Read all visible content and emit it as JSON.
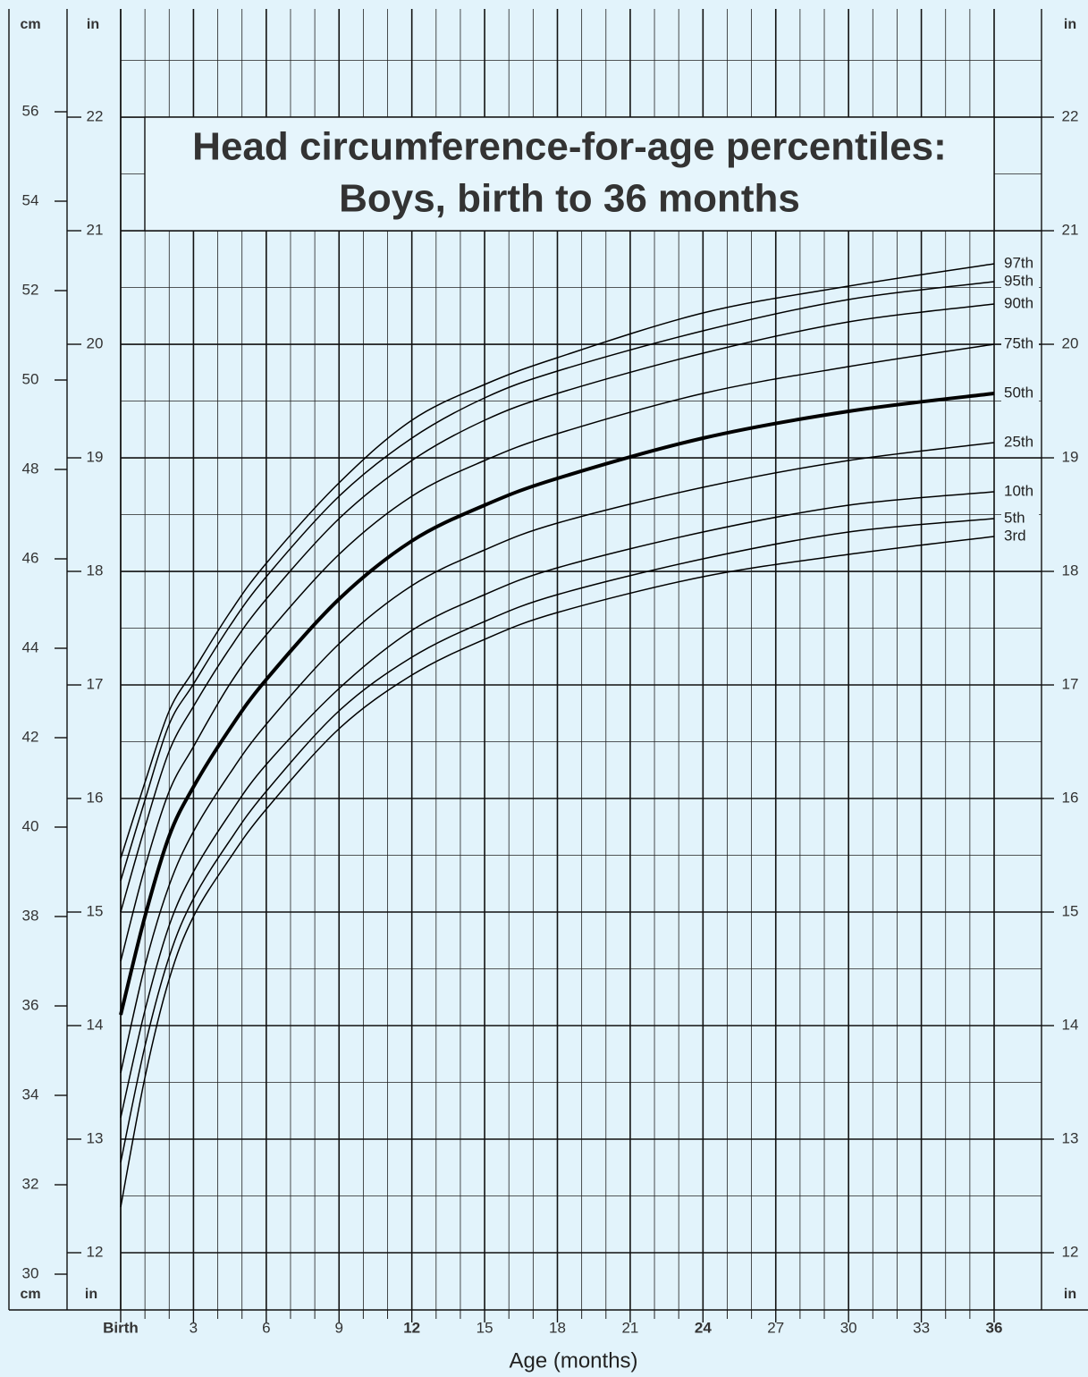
{
  "chart_data": {
    "type": "line",
    "title": [
      "Head circumference-for-age percentiles:",
      "Boys, birth to 36 months"
    ],
    "xlabel": "Age (months)",
    "ylabel": "cm",
    "y2label": "in",
    "x": [
      0,
      1,
      2,
      3,
      4.5,
      6,
      9,
      12,
      15,
      18,
      24,
      30,
      36
    ],
    "xlim": [
      0,
      36
    ],
    "xticks": [
      {
        "value": 0,
        "label": "Birth"
      },
      3,
      6,
      9,
      12,
      15,
      18,
      21,
      24,
      27,
      30,
      33,
      36
    ],
    "xminorticks": [
      1,
      2,
      4,
      5,
      7,
      8,
      10,
      11,
      13,
      14,
      16,
      17,
      19,
      20,
      22,
      23,
      25,
      26,
      28,
      29,
      31,
      32,
      34,
      35
    ],
    "ylim": [
      29.2,
      58.3
    ],
    "yticks": [
      30,
      32,
      34,
      36,
      38,
      40,
      42,
      44,
      46,
      48,
      50,
      52,
      54,
      56
    ],
    "y2lim": [
      11.496,
      22.953
    ],
    "y2ticks": [
      12,
      13,
      14,
      15,
      16,
      17,
      18,
      19,
      20,
      21,
      22
    ],
    "y2minorticks": [
      12.5,
      13.5,
      14.5,
      15.5,
      16.5,
      17.5,
      18.5,
      19.5,
      20.5,
      21.5,
      22.5
    ],
    "grid": true,
    "series": [
      {
        "name": "97th",
        "color": "#000000",
        "values": [
          39.3,
          41.0,
          42.6,
          43.5,
          44.8,
          45.9,
          47.7,
          49.1,
          49.9,
          50.5,
          51.5,
          52.1,
          52.6
        ]
      },
      {
        "name": "95th",
        "color": "#000000",
        "values": [
          38.8,
          40.6,
          42.3,
          43.2,
          44.5,
          45.6,
          47.4,
          48.7,
          49.6,
          50.2,
          51.1,
          51.8,
          52.2
        ]
      },
      {
        "name": "90th",
        "color": "#000000",
        "values": [
          38.1,
          40.0,
          41.7,
          42.7,
          44.0,
          45.1,
          46.9,
          48.2,
          49.1,
          49.7,
          50.6,
          51.3,
          51.7
        ]
      },
      {
        "name": "75th",
        "color": "#000000",
        "values": [
          37.0,
          39.1,
          40.8,
          41.8,
          43.2,
          44.3,
          46.1,
          47.4,
          48.2,
          48.8,
          49.7,
          50.3,
          50.8
        ]
      },
      {
        "name": "50th",
        "color": "#000000",
        "values": [
          35.8,
          38.0,
          39.8,
          40.9,
          42.2,
          43.3,
          45.1,
          46.4,
          47.2,
          47.8,
          48.7,
          49.3,
          49.7
        ]
      },
      {
        "name": "25th",
        "color": "#000000",
        "values": [
          34.5,
          36.9,
          38.7,
          39.9,
          41.2,
          42.3,
          44.1,
          45.4,
          46.2,
          46.8,
          47.6,
          48.2,
          48.6
        ]
      },
      {
        "name": "10th",
        "color": "#000000",
        "values": [
          33.5,
          35.9,
          37.8,
          39.0,
          40.3,
          41.4,
          43.1,
          44.4,
          45.2,
          45.8,
          46.6,
          47.2,
          47.5
        ]
      },
      {
        "name": "5th",
        "color": "#000000",
        "values": [
          32.5,
          35.1,
          37.1,
          38.4,
          39.7,
          40.8,
          42.6,
          43.8,
          44.6,
          45.2,
          46.0,
          46.6,
          46.9
        ]
      },
      {
        "name": "3rd",
        "color": "#000000",
        "values": [
          31.5,
          34.4,
          36.6,
          38.0,
          39.3,
          40.4,
          42.2,
          43.4,
          44.2,
          44.8,
          45.6,
          46.1,
          46.5
        ]
      }
    ]
  }
}
